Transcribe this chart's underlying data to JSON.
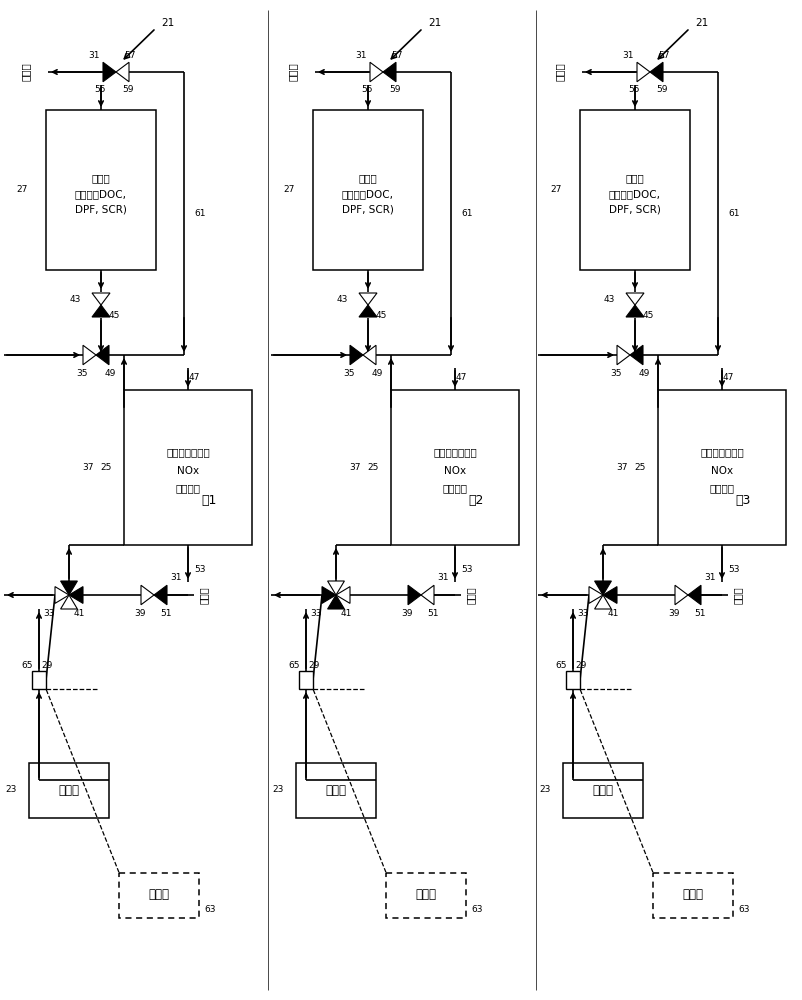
{
  "bg_color": "#ffffff",
  "panels": [
    {
      "fig_label": "图1",
      "valve57_left_black": true,
      "valve35_left_black": false,
      "valve33_cfg": 0,
      "valve39_left_black": false,
      "exhaust_arrow_right": true
    },
    {
      "fig_label": "图2",
      "valve57_left_black": false,
      "valve35_left_black": true,
      "valve33_cfg": 1,
      "valve39_left_black": true,
      "exhaust_arrow_right": false
    },
    {
      "fig_label": "图3",
      "valve57_left_black": false,
      "valve35_left_black": false,
      "valve33_cfg": 2,
      "valve39_left_black": false,
      "exhaust_arrow_right": false
    }
  ],
  "labels": {
    "21": "21",
    "23": "23",
    "25": "25",
    "27": "27",
    "29": "29",
    "31": "31",
    "33": "33",
    "35": "35",
    "37": "37",
    "39": "39",
    "41": "41",
    "43": "43",
    "45": "45",
    "47": "47",
    "49": "49",
    "51": "51",
    "53": "53",
    "55": "55",
    "57": "57",
    "59": "59",
    "61": "61",
    "63": "63",
    "65": "65",
    "engine": "发动机",
    "controller": "控制器",
    "exhaust": "排气管",
    "group1_l1": "第一组（例如，",
    "group1_l2": "NOx",
    "group1_l3": "捕集器）",
    "group2_l1": "第二组",
    "group2_l2": "（例如，DOC,",
    "group2_l3": "DPF, SCR)"
  }
}
